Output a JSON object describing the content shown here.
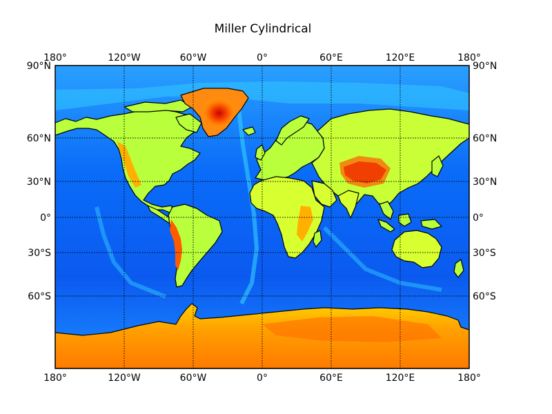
{
  "title": "Miller Cylindrical",
  "map": {
    "projection": "Miller Cylindrical",
    "lon_range": [
      -180,
      180
    ],
    "lat_range": [
      -90,
      90
    ],
    "colormap": "jet",
    "graticule_style": "dotted",
    "coastlines": true
  },
  "meridians": [
    {
      "lon": -180,
      "label": "180°"
    },
    {
      "lon": -120,
      "label": "120°W"
    },
    {
      "lon": -60,
      "label": "60°W"
    },
    {
      "lon": 0,
      "label": "0°"
    },
    {
      "lon": 60,
      "label": "60°E"
    },
    {
      "lon": 120,
      "label": "120°E"
    },
    {
      "lon": 180,
      "label": "180°"
    }
  ],
  "parallels": [
    {
      "lat": 90,
      "label": "90°N"
    },
    {
      "lat": 60,
      "label": "60°N"
    },
    {
      "lat": 30,
      "label": "30°N"
    },
    {
      "lat": 0,
      "label": "0°"
    },
    {
      "lat": -30,
      "label": "30°S"
    },
    {
      "lat": -60,
      "label": "60°S"
    }
  ],
  "colors": {
    "ocean_deep": "#0a3cf0",
    "ocean": "#0f7cff",
    "shelf": "#28c8ff",
    "lowland": "#a8ff50",
    "plain": "#d8ff30",
    "upland": "#ffb000",
    "highland": "#ff5a00",
    "peak": "#cc0000",
    "coast": "#000000",
    "grid": "#000000"
  }
}
